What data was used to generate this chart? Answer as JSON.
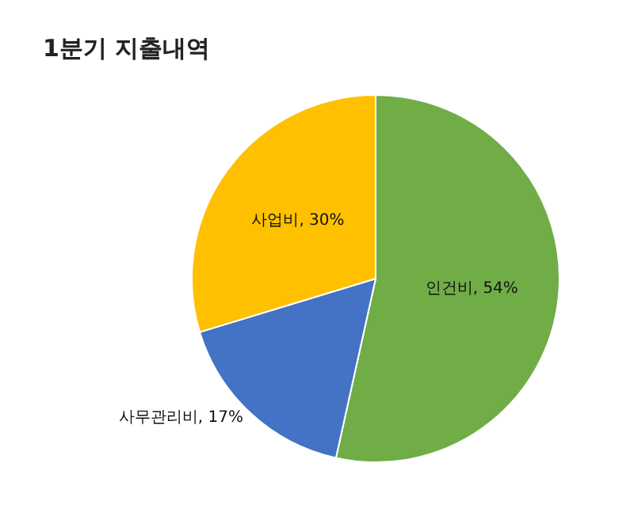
{
  "chart_data": {
    "type": "pie",
    "title": "1분기 지출내역",
    "categories": [
      "인건비",
      "사무관리비",
      "사업비"
    ],
    "values": [
      54,
      17,
      30
    ],
    "value_labels": [
      "54%",
      "17%",
      "30%"
    ],
    "colors": [
      "#70ad47",
      "#4472c4",
      "#ffc000"
    ],
    "legend": false
  }
}
